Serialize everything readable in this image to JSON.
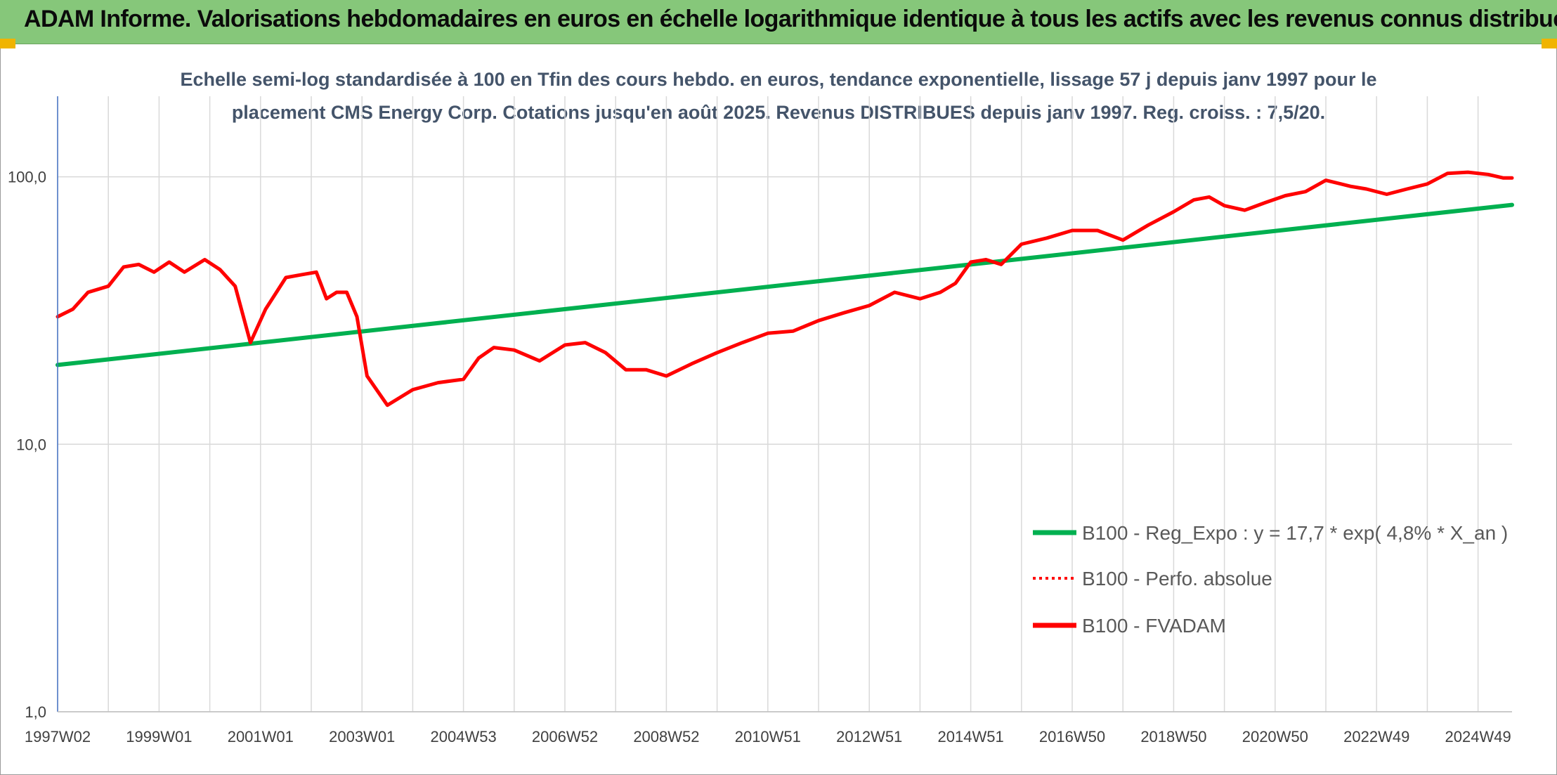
{
  "header": {
    "title": "ADAM Informe. Valorisations hebdomadaires en euros en échelle logarithmique identique à tous les actifs avec les revenus connus distribués"
  },
  "colors": {
    "header_bg": "#86c77a",
    "regression": "#00b050",
    "fvadam": "#ff0000",
    "perfo": "#ff0000",
    "axis": "#4472c4",
    "grid": "#d9d9d9"
  },
  "chart_data": {
    "type": "line",
    "title_lines": [
      "Echelle semi-log standardisée à 100 en Tfin des cours hebdo. en euros, tendance exponentielle, lissage 57 j depuis janv 1997 pour le",
      "placement CMS Energy Corp. Cotations jusqu'en août 2025. Revenus DISTRIBUES depuis janv 1997. Reg. croiss. : 7,5/20."
    ],
    "y_scale": "log",
    "ylim": [
      1,
      200
    ],
    "y_ticks": [
      {
        "value": 1,
        "label": "1,0"
      },
      {
        "value": 10,
        "label": "10,0"
      },
      {
        "value": 100,
        "label": "100,0"
      }
    ],
    "xlim": [
      1997.0,
      2025.67
    ],
    "x_ticks": [
      {
        "value": 1997.0,
        "label": "1997W02"
      },
      {
        "value": 1999.0,
        "label": "1999W01"
      },
      {
        "value": 2001.0,
        "label": "2001W01"
      },
      {
        "value": 2003.0,
        "label": "2003W01"
      },
      {
        "value": 2005.0,
        "label": "2004W53"
      },
      {
        "value": 2007.0,
        "label": "2006W52"
      },
      {
        "value": 2009.0,
        "label": "2008W52"
      },
      {
        "value": 2011.0,
        "label": "2010W51"
      },
      {
        "value": 2013.0,
        "label": "2012W51"
      },
      {
        "value": 2015.0,
        "label": "2014W51"
      },
      {
        "value": 2017.0,
        "label": "2016W50"
      },
      {
        "value": 2019.0,
        "label": "2018W50"
      },
      {
        "value": 2021.0,
        "label": "2020W50"
      },
      {
        "value": 2023.0,
        "label": "2022W49"
      },
      {
        "value": 2025.0,
        "label": "2024W49"
      }
    ],
    "legend_position": "bottom-right",
    "series": [
      {
        "name": "B100 - Reg_Expo : y = 17,7 * exp( 4,8% *  X_an )",
        "style": "solid-thick",
        "color": "#00b050",
        "x": [
          1997.0,
          2025.67
        ],
        "y": [
          19.8,
          78.5
        ]
      },
      {
        "name": "B100 - Perfo. absolue",
        "style": "dotted",
        "color": "#ff0000",
        "x": [],
        "y": []
      },
      {
        "name": "B100 - FVADAM",
        "style": "solid-thick",
        "color": "#ff0000",
        "x": [
          1997.0,
          1997.3,
          1997.6,
          1998.0,
          1998.3,
          1998.6,
          1998.9,
          1999.2,
          1999.5,
          1999.9,
          2000.2,
          2000.5,
          2000.8,
          2001.1,
          2001.5,
          2001.8,
          2002.1,
          2002.3,
          2002.5,
          2002.7,
          2002.9,
          2003.1,
          2003.5,
          2004.0,
          2004.5,
          2005.0,
          2005.3,
          2005.6,
          2006.0,
          2006.5,
          2007.0,
          2007.4,
          2007.8,
          2008.2,
          2008.6,
          2009.0,
          2009.5,
          2010.0,
          2010.5,
          2011.0,
          2011.5,
          2012.0,
          2012.5,
          2013.0,
          2013.5,
          2014.0,
          2014.4,
          2014.7,
          2015.0,
          2015.3,
          2015.6,
          2016.0,
          2016.5,
          2017.0,
          2017.5,
          2018.0,
          2018.5,
          2019.0,
          2019.4,
          2019.7,
          2020.0,
          2020.4,
          2020.8,
          2021.2,
          2021.6,
          2022.0,
          2022.5,
          2022.8,
          2023.2,
          2023.6,
          2024.0,
          2024.4,
          2024.8,
          2025.2,
          2025.5,
          2025.67
        ],
        "y": [
          30,
          32,
          37,
          39,
          46,
          47,
          44,
          48,
          44,
          49,
          45,
          39,
          24,
          32,
          42,
          43,
          44,
          35,
          37,
          37,
          30,
          18,
          14,
          16,
          17,
          17.5,
          21,
          23,
          22.5,
          20.5,
          23.5,
          24,
          22,
          19,
          19,
          18,
          20,
          22,
          24,
          26,
          26.5,
          29,
          31,
          33,
          37,
          35,
          37,
          40,
          48,
          49,
          47,
          56,
          59,
          63,
          63,
          58,
          66,
          74,
          82,
          84,
          78,
          75,
          80,
          85,
          88,
          97,
          92,
          90,
          86,
          90,
          94,
          103,
          104,
          102,
          99,
          99
        ]
      }
    ]
  }
}
